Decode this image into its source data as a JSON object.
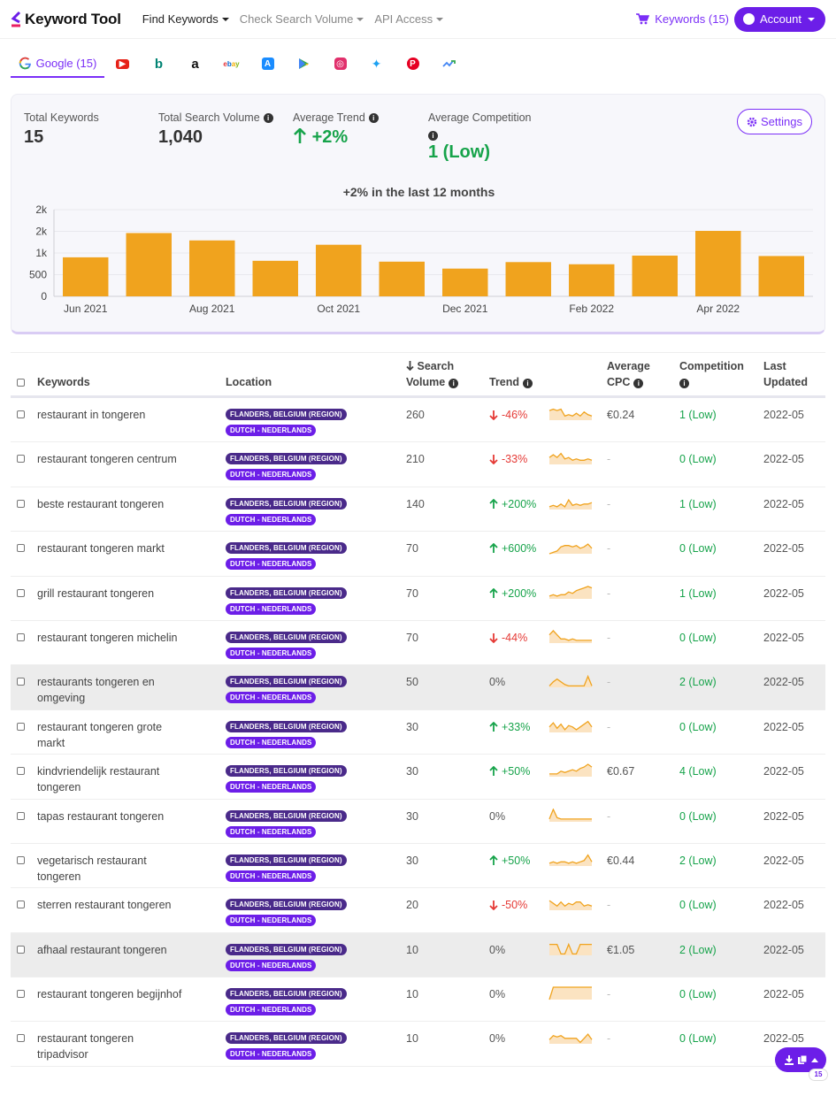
{
  "nav": {
    "logo": "Keyword Tool",
    "menu": [
      {
        "label": "Find Keywords",
        "active": true
      },
      {
        "label": "Check Search Volume",
        "active": false
      },
      {
        "label": "API Access",
        "active": false
      }
    ],
    "keywords_link": "Keywords (15)",
    "account_label": "Account"
  },
  "tabs": {
    "google_label": "Google (15)",
    "icons": [
      "youtube-icon",
      "bing-icon",
      "amazon-icon",
      "ebay-icon",
      "app-store-icon",
      "play-store-icon",
      "instagram-icon",
      "twitter-icon",
      "pinterest-icon",
      "trends-icon"
    ]
  },
  "summary": {
    "total_keywords_label": "Total Keywords",
    "total_keywords": "15",
    "total_volume_label": "Total Search Volume",
    "total_volume": "1,040",
    "avg_trend_label": "Average Trend",
    "avg_trend": "+2%",
    "avg_competition_label": "Average Competition",
    "avg_competition": "1 (Low)",
    "settings_label": "Settings"
  },
  "chart_data": {
    "type": "bar",
    "title": "+2% in the last 12 months",
    "categories": [
      "Jun 2021",
      "Jul 2021",
      "Aug 2021",
      "Sep 2021",
      "Oct 2021",
      "Nov 2021",
      "Dec 2021",
      "Jan 2022",
      "Feb 2022",
      "Mar 2022",
      "Apr 2022",
      "May 2022"
    ],
    "values": [
      900,
      1460,
      1290,
      820,
      1190,
      800,
      640,
      790,
      740,
      940,
      1510,
      930
    ],
    "x_tick_labels": [
      "Jun 2021",
      "",
      "Aug 2021",
      "",
      "Oct 2021",
      "",
      "Dec 2021",
      "",
      "Feb 2022",
      "",
      "Apr 2022",
      ""
    ],
    "y_ticks": [
      0,
      500,
      1000,
      1500,
      2000
    ],
    "y_tick_labels": [
      "0",
      "500",
      "1k",
      "2k",
      "2k"
    ],
    "ylim": [
      0,
      2000
    ],
    "color": "#f0a31e",
    "grid": true
  },
  "table": {
    "headers": {
      "keywords": "Keywords",
      "location": "Location",
      "search": "Search",
      "volume": "Volume",
      "trend": "Trend",
      "average": "Average",
      "cpc": "CPC",
      "competition": "Competition",
      "last": "Last",
      "updated": "Updated"
    },
    "rows": [
      {
        "keyword": "restaurant in tongeren",
        "location": "FLANDERS, BELGIUM (REGION)",
        "language": "DUTCH - NEDERLANDS",
        "volume": "260",
        "trend": "-46%",
        "dir": "down",
        "spark": [
          7,
          8,
          7,
          8,
          3,
          4,
          3,
          5,
          3,
          6,
          4,
          3
        ],
        "cpc": "€0.24",
        "competition": "1 (Low)",
        "updated": "2022-05",
        "gray": false
      },
      {
        "keyword": "restaurant tongeren centrum",
        "location": "FLANDERS, BELGIUM (REGION)",
        "language": "DUTCH - NEDERLANDS",
        "volume": "210",
        "trend": "-33%",
        "dir": "down",
        "spark": [
          5,
          7,
          5,
          8,
          4,
          5,
          3,
          4,
          3,
          3,
          4,
          3
        ],
        "cpc": "-",
        "competition": "0 (Low)",
        "updated": "2022-05",
        "gray": false
      },
      {
        "keyword": "beste restaurant tongeren",
        "location": "FLANDERS, BELGIUM (REGION)",
        "language": "DUTCH - NEDERLANDS",
        "volume": "140",
        "trend": "+200%",
        "dir": "up",
        "spark": [
          2,
          3,
          2,
          4,
          2,
          7,
          3,
          4,
          3,
          4,
          4,
          5
        ],
        "cpc": "-",
        "competition": "1 (Low)",
        "updated": "2022-05",
        "gray": false
      },
      {
        "keyword": "restaurant tongeren markt",
        "location": "FLANDERS, BELGIUM (REGION)",
        "language": "DUTCH - NEDERLANDS",
        "volume": "70",
        "trend": "+600%",
        "dir": "up",
        "spark": [
          0,
          1,
          2,
          5,
          6,
          6,
          5,
          6,
          4,
          5,
          7,
          4
        ],
        "cpc": "-",
        "competition": "0 (Low)",
        "updated": "2022-05",
        "gray": false
      },
      {
        "keyword": "grill restaurant tongeren",
        "location": "FLANDERS, BELGIUM (REGION)",
        "language": "DUTCH - NEDERLANDS",
        "volume": "70",
        "trend": "+200%",
        "dir": "up",
        "spark": [
          2,
          3,
          2,
          3,
          3,
          5,
          4,
          6,
          7,
          8,
          9,
          8
        ],
        "cpc": "-",
        "competition": "1 (Low)",
        "updated": "2022-05",
        "gray": false
      },
      {
        "keyword": "restaurant tongeren michelin",
        "location": "FLANDERS, BELGIUM (REGION)",
        "language": "DUTCH - NEDERLANDS",
        "volume": "70",
        "trend": "-44%",
        "dir": "down",
        "spark": [
          6,
          9,
          6,
          3,
          3,
          2,
          3,
          2,
          2,
          2,
          2,
          2
        ],
        "cpc": "-",
        "competition": "0 (Low)",
        "updated": "2022-05",
        "gray": false
      },
      {
        "keyword": "restaurants tongeren en omgeving",
        "location": "FLANDERS, BELGIUM (REGION)",
        "language": "DUTCH - NEDERLANDS",
        "volume": "50",
        "trend": "0%",
        "dir": "flat",
        "spark": [
          1,
          4,
          6,
          4,
          2,
          1,
          1,
          1,
          1,
          1,
          8,
          1
        ],
        "cpc": "-",
        "competition": "2 (Low)",
        "updated": "2022-05",
        "gray": true
      },
      {
        "keyword": "restaurant tongeren grote markt",
        "location": "FLANDERS, BELGIUM (REGION)",
        "language": "DUTCH - NEDERLANDS",
        "volume": "30",
        "trend": "+33%",
        "dir": "up",
        "spark": [
          4,
          7,
          3,
          6,
          2,
          5,
          4,
          2,
          4,
          6,
          8,
          4
        ],
        "cpc": "-",
        "competition": "0 (Low)",
        "updated": "2022-05",
        "gray": false
      },
      {
        "keyword": "kindvriendelijk restaurant tongeren",
        "location": "FLANDERS, BELGIUM (REGION)",
        "language": "DUTCH - NEDERLANDS",
        "volume": "30",
        "trend": "+50%",
        "dir": "up",
        "spark": [
          2,
          2,
          2,
          4,
          3,
          4,
          5,
          4,
          6,
          7,
          9,
          7
        ],
        "cpc": "€0.67",
        "competition": "4 (Low)",
        "updated": "2022-05",
        "gray": false
      },
      {
        "keyword": "tapas restaurant tongeren",
        "location": "FLANDERS, BELGIUM (REGION)",
        "language": "DUTCH - NEDERLANDS",
        "volume": "30",
        "trend": "0%",
        "dir": "flat",
        "spark": [
          2,
          9,
          3,
          2,
          2,
          2,
          2,
          2,
          2,
          2,
          2,
          2
        ],
        "cpc": "-",
        "competition": "0 (Low)",
        "updated": "2022-05",
        "gray": false
      },
      {
        "keyword": "vegetarisch restaurant tongeren",
        "location": "FLANDERS, BELGIUM (REGION)",
        "language": "DUTCH - NEDERLANDS",
        "volume": "30",
        "trend": "+50%",
        "dir": "up",
        "spark": [
          2,
          3,
          2,
          3,
          3,
          2,
          3,
          2,
          3,
          4,
          8,
          3
        ],
        "cpc": "€0.44",
        "competition": "2 (Low)",
        "updated": "2022-05",
        "gray": false
      },
      {
        "keyword": "sterren restaurant tongeren",
        "location": "FLANDERS, BELGIUM (REGION)",
        "language": "DUTCH - NEDERLANDS",
        "volume": "20",
        "trend": "-50%",
        "dir": "down",
        "spark": [
          7,
          5,
          3,
          6,
          3,
          5,
          4,
          6,
          6,
          3,
          4,
          3
        ],
        "cpc": "-",
        "competition": "0 (Low)",
        "updated": "2022-05",
        "gray": false
      },
      {
        "keyword": "afhaal restaurant tongeren",
        "location": "FLANDERS, BELGIUM (REGION)",
        "language": "DUTCH - NEDERLANDS",
        "volume": "10",
        "trend": "0%",
        "dir": "flat",
        "spark": [
          8,
          8,
          8,
          1,
          1,
          8,
          1,
          1,
          8,
          8,
          8,
          8
        ],
        "cpc": "€1.05",
        "competition": "2 (Low)",
        "updated": "2022-05",
        "gray": true
      },
      {
        "keyword": "restaurant tongeren begijnhof",
        "location": "FLANDERS, BELGIUM (REGION)",
        "language": "DUTCH - NEDERLANDS",
        "volume": "10",
        "trend": "0%",
        "dir": "flat",
        "spark": [
          0,
          9,
          9,
          9,
          9,
          9,
          9,
          9,
          9,
          9,
          9,
          9
        ],
        "cpc": "-",
        "competition": "0 (Low)",
        "updated": "2022-05",
        "gray": false
      },
      {
        "keyword": "restaurant tongeren tripadvisor",
        "location": "FLANDERS, BELGIUM (REGION)",
        "language": "DUTCH - NEDERLANDS",
        "volume": "10",
        "trend": "0%",
        "dir": "flat",
        "spark": [
          3,
          6,
          5,
          6,
          4,
          4,
          4,
          4,
          1,
          4,
          7,
          3
        ],
        "cpc": "-",
        "competition": "0 (Low)",
        "updated": "2022-05",
        "gray": false
      }
    ]
  },
  "fab": {
    "count": "15"
  },
  "colors": {
    "accent": "#6c1ee8",
    "bar": "#f0a31e",
    "up": "#16a34a",
    "down": "#e53935"
  }
}
